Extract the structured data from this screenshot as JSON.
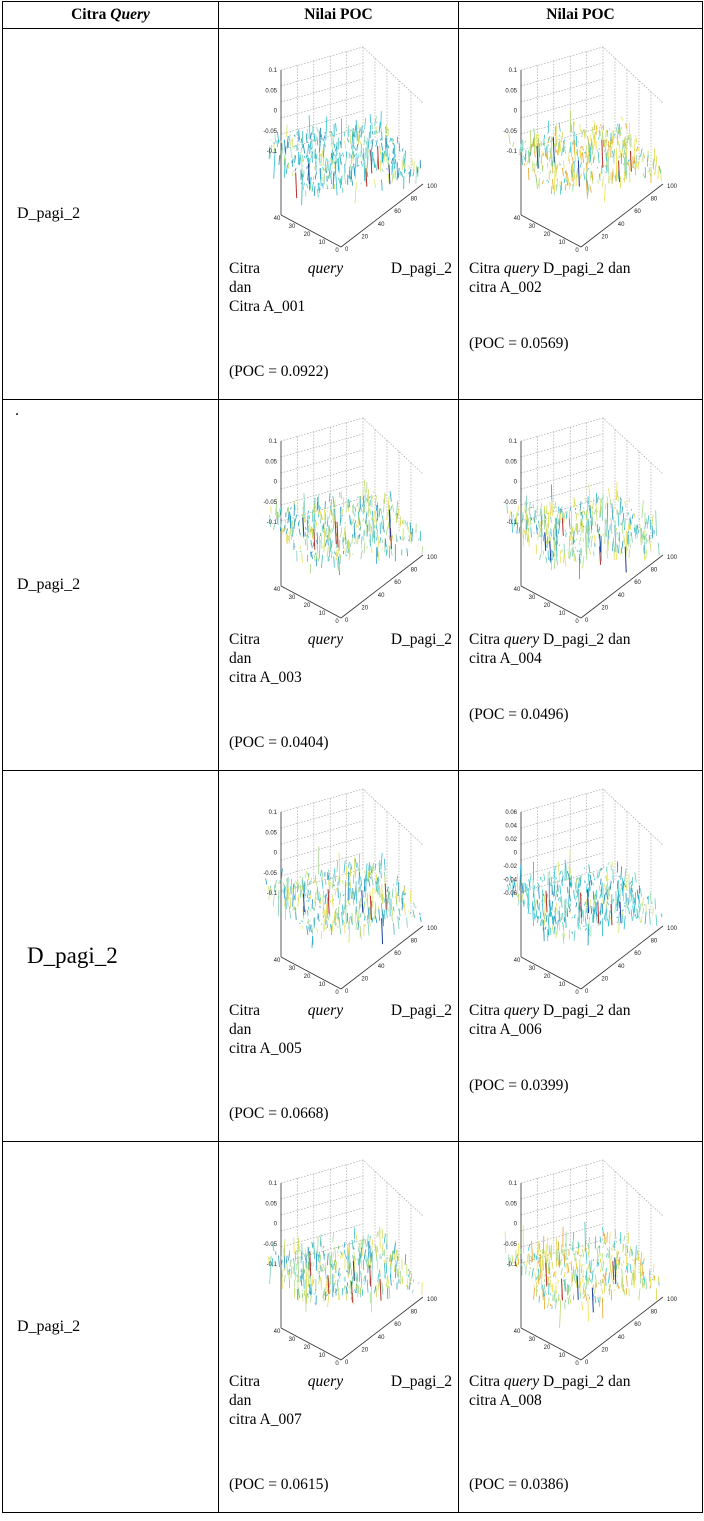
{
  "header": {
    "col1_a": "Citra ",
    "col1_b": "Query",
    "col2": "Nilai POC",
    "col3": "Nilai POC"
  },
  "caption_words": {
    "citra_cap": "Citra",
    "citra_low": "citra",
    "query": "query",
    "dan": "dan"
  },
  "rows": [
    {
      "query_label": "D_pagi_2",
      "marker": "",
      "left": {
        "query_name": "D_pagi_2",
        "ref": "Citra A_001",
        "poc": "(POC = 0.0922)",
        "z_ticks": [
          "0.1",
          "0.05",
          "0",
          "-0.05",
          "-0.1"
        ],
        "palette": "blue"
      },
      "right": {
        "query_name": "D_pagi_2",
        "ref": "citra A_002",
        "poc": "(POC = 0.0569)",
        "z_ticks": [
          "0.1",
          "0.05",
          "0",
          "-0.05",
          "-0.1"
        ],
        "palette": "yellow"
      }
    },
    {
      "query_label": "D_pagi_2",
      "marker": ".",
      "left": {
        "query_name": "D_pagi_2",
        "ref": "citra A_003",
        "poc": "(POC = 0.0404)",
        "z_ticks": [
          "0.1",
          "0.05",
          "0",
          "-0.05",
          "-0.1"
        ],
        "palette": "mixed"
      },
      "right": {
        "query_name": "D_pagi_2",
        "ref": "citra A_004",
        "poc": "(POC = 0.0496)",
        "z_ticks": [
          "0.1",
          "0.05",
          "0",
          "-0.05",
          "-0.1"
        ],
        "palette": "mixed"
      }
    },
    {
      "query_label": "D_pagi_2",
      "marker": "",
      "left": {
        "query_name": "D_pagi_2",
        "ref": "citra A_005",
        "poc": "(POC = 0.0668)",
        "z_ticks": [
          "0.1",
          "0.05",
          "0",
          "-0.05",
          "-0.1"
        ],
        "palette": "mixed"
      },
      "right": {
        "query_name": "D_pagi_2",
        "ref": "citra A_006",
        "poc": "(POC = 0.0399)",
        "z_ticks": [
          "0.06",
          "0.04",
          "0.02",
          "0",
          "-0.02",
          "-0.04",
          "-0.06"
        ],
        "palette": "blue"
      }
    },
    {
      "query_label": "D_pagi_2",
      "marker": "",
      "left": {
        "query_name": "D_pagi_2",
        "ref": "citra A_007",
        "poc": "(POC = 0.0615)",
        "z_ticks": [
          "0.1",
          "0.05",
          "0",
          "-0.05",
          "-0.1"
        ],
        "palette": "mixed"
      },
      "right": {
        "query_name": "D_pagi_2",
        "ref": "citra  A_008",
        "poc": "(POC = 0.0386)",
        "z_ticks": [
          "0.1",
          "0.05",
          "0",
          "-0.05",
          "-0.1"
        ],
        "palette": "yellow"
      }
    }
  ],
  "plot_axes": {
    "y_ticks": [
      "40",
      "30",
      "20",
      "10",
      "0"
    ],
    "x_ticks": [
      "0",
      "20",
      "40",
      "60",
      "80",
      "100"
    ]
  },
  "colors": {
    "blue": [
      "#22b5c4",
      "#2fc0d8",
      "#58d0c0",
      "#1c8fb8",
      "#9ad9b6",
      "#d6e36c"
    ],
    "yellow": [
      "#d8d84a",
      "#f0e24c",
      "#b9d96d",
      "#3cc2c8",
      "#e6a42e",
      "#8fd4a0"
    ],
    "mixed": [
      "#3cc0c8",
      "#7dcfb4",
      "#c9de64",
      "#e9df56",
      "#2a9cc4",
      "#a8d890"
    ]
  }
}
